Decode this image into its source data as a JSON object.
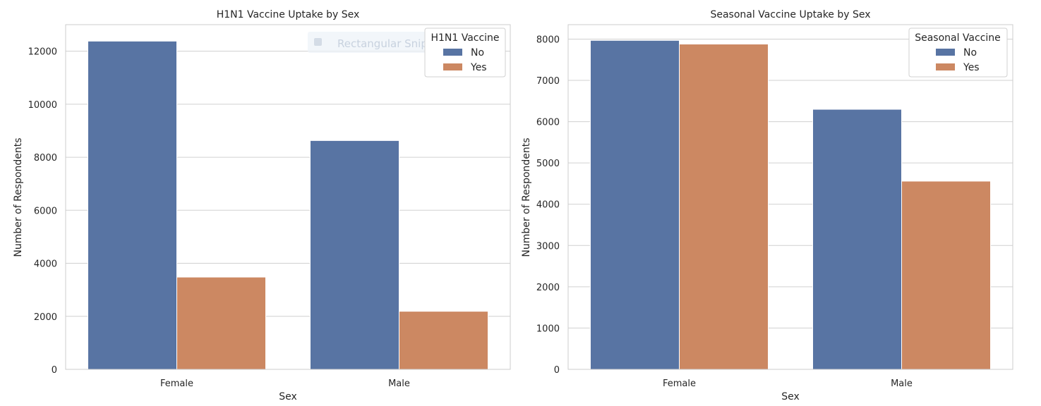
{
  "chart_data": [
    {
      "type": "bar",
      "title": "H1N1 Vaccine Uptake by Sex",
      "xlabel": "Sex",
      "ylabel": "Number of Respondents",
      "categories": [
        "Female",
        "Male"
      ],
      "series": [
        {
          "name": "No",
          "values": [
            12380,
            8630
          ]
        },
        {
          "name": "Yes",
          "values": [
            3480,
            2190
          ]
        }
      ],
      "ylim": [
        0,
        13000
      ],
      "yticks": [
        0,
        2000,
        4000,
        6000,
        8000,
        10000,
        12000
      ],
      "legend": {
        "title": "H1N1 Vaccine",
        "placement": "top-right"
      },
      "grid": true
    },
    {
      "type": "bar",
      "title": "Seasonal Vaccine Uptake by Sex",
      "xlabel": "Sex",
      "ylabel": "Number of Respondents",
      "categories": [
        "Female",
        "Male"
      ],
      "series": [
        {
          "name": "No",
          "values": [
            7970,
            6300
          ]
        },
        {
          "name": "Yes",
          "values": [
            7880,
            4560
          ]
        }
      ],
      "ylim": [
        0,
        8350
      ],
      "yticks": [
        0,
        1000,
        2000,
        3000,
        4000,
        5000,
        6000,
        7000,
        8000
      ],
      "legend": {
        "title": "Seasonal Vaccine",
        "placement": "top-right"
      },
      "grid": true
    }
  ],
  "colors": {
    "series": [
      "#5874a3",
      "#cc8862"
    ],
    "grid": "#d0d0d0",
    "frame": "#cccccc",
    "text": "#262626"
  },
  "overlay": {
    "label": "Rectangular Snip"
  }
}
